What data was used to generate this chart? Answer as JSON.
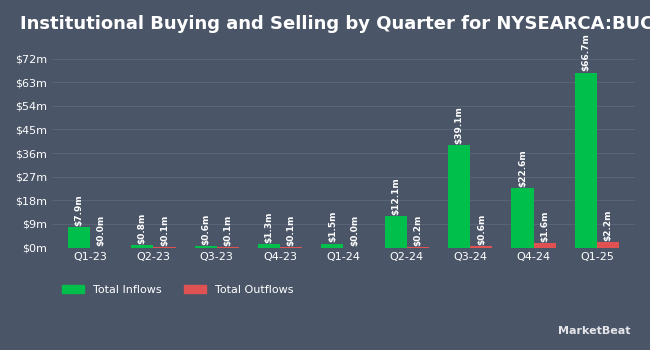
{
  "title": "Institutional Buying and Selling by Quarter for NYSEARCA:BUCK",
  "quarters": [
    "Q1-23",
    "Q2-23",
    "Q3-23",
    "Q4-23",
    "Q1-24",
    "Q2-24",
    "Q3-24",
    "Q4-24",
    "Q1-25"
  ],
  "inflows": [
    7.9,
    0.8,
    0.6,
    1.3,
    1.5,
    12.1,
    39.1,
    22.6,
    66.7
  ],
  "outflows": [
    0.0,
    0.1,
    0.1,
    0.1,
    0.0,
    0.2,
    0.6,
    1.6,
    2.2
  ],
  "inflow_labels": [
    "$7.9m",
    "$0.8m",
    "$0.6m",
    "$1.3m",
    "$1.5m",
    "$12.1m",
    "$39.1m",
    "$22.6m",
    "$66.7m"
  ],
  "outflow_labels": [
    "$0.0m",
    "$0.1m",
    "$0.1m",
    "$0.1m",
    "$0.0m",
    "$0.2m",
    "$0.6m",
    "$1.6m",
    "$2.2m"
  ],
  "inflow_color": "#00c04b",
  "outflow_color": "#e05252",
  "bg_color": "#4a5568",
  "text_color": "#ffffff",
  "grid_color": "#5a6578",
  "yticks": [
    0,
    9,
    18,
    27,
    36,
    45,
    54,
    63,
    72
  ],
  "ytick_labels": [
    "$0m",
    "$9m",
    "$18m",
    "$27m",
    "$36m",
    "$45m",
    "$54m",
    "$63m",
    "$72m"
  ],
  "ylim": [
    0,
    78
  ],
  "bar_width": 0.35,
  "title_fontsize": 13,
  "label_fontsize": 6.5,
  "tick_fontsize": 8,
  "legend_fontsize": 8
}
